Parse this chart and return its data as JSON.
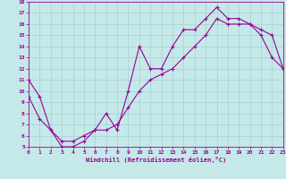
{
  "xlabel": "Windchill (Refroidissement éolien,°C)",
  "bg_color": "#c5e8e8",
  "grid_color": "#a8d0d0",
  "line_color": "#990099",
  "xlim": [
    0,
    23
  ],
  "ylim": [
    5,
    18
  ],
  "xticks": [
    0,
    1,
    2,
    3,
    4,
    5,
    6,
    7,
    8,
    9,
    10,
    11,
    12,
    13,
    14,
    15,
    16,
    17,
    18,
    19,
    20,
    21,
    22,
    23
  ],
  "yticks": [
    5,
    6,
    7,
    8,
    9,
    10,
    11,
    12,
    13,
    14,
    15,
    16,
    17,
    18
  ],
  "line1_x": [
    0,
    1,
    2,
    3,
    4,
    5,
    6,
    7,
    8,
    9,
    10,
    11,
    12,
    13,
    14,
    15,
    16,
    17,
    18,
    19,
    20,
    21,
    22,
    23
  ],
  "line1_y": [
    11,
    9.5,
    6.5,
    5,
    5,
    5.5,
    6.5,
    8,
    6.5,
    10,
    14,
    12,
    12,
    14,
    15.5,
    15.5,
    16.5,
    17.5,
    16.5,
    16.5,
    16,
    15,
    13,
    12
  ],
  "line2_x": [
    0,
    1,
    2,
    3,
    4,
    5,
    6,
    7,
    8,
    9,
    10,
    11,
    12,
    13,
    14,
    15,
    16,
    17,
    18,
    19,
    20,
    21,
    22,
    23
  ],
  "line2_y": [
    9.5,
    7.5,
    6.5,
    5.5,
    5.5,
    6.0,
    6.5,
    6.5,
    7,
    8.5,
    10,
    11,
    11.5,
    12,
    13,
    14,
    15,
    16.5,
    16,
    16,
    16,
    15.5,
    15,
    12
  ]
}
